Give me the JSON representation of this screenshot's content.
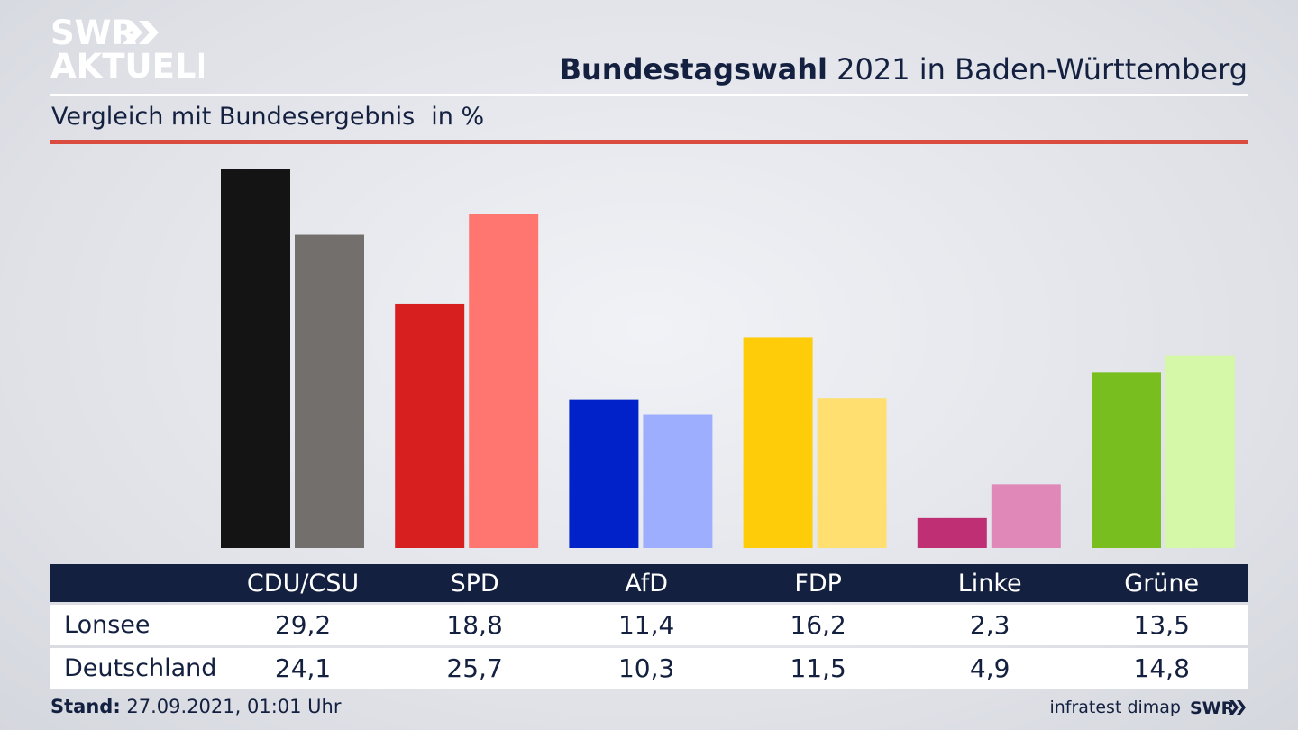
{
  "header": {
    "logo_line1": "SWR",
    "logo_line2": "AKTUELL",
    "title_bold": "Bundestagswahl",
    "title_rest": " 2021 in Baden-Württemberg",
    "subtitle": "Vergleich mit Bundesergebnis",
    "unit": "in %"
  },
  "chart_data": {
    "type": "bar",
    "categories": [
      "CDU/CSU",
      "SPD",
      "AfD",
      "FDP",
      "Linke",
      "Grüne"
    ],
    "series": [
      {
        "name": "Lonsee",
        "values": [
          29.2,
          18.8,
          11.4,
          16.2,
          2.3,
          13.5
        ]
      },
      {
        "name": "Deutschland",
        "values": [
          24.1,
          25.7,
          10.3,
          11.5,
          4.9,
          14.8
        ]
      }
    ],
    "colors": {
      "Lonsee": [
        "#141414",
        "#d71f1f",
        "#0022c8",
        "#ffcc0a",
        "#bf2f74",
        "#78be1e"
      ],
      "Deutschland": [
        "#726f6c",
        "#ff7671",
        "#9daeff",
        "#fedf70",
        "#e088b8",
        "#d5f7a8"
      ]
    },
    "ylim": [
      0,
      29.2
    ],
    "grid": false,
    "legend": "table-below"
  },
  "footer": {
    "stand_label": "Stand:",
    "stand_value": " 27.09.2021, 01:01 Uhr",
    "source": "infratest dimap",
    "small_logo": "SWR"
  }
}
